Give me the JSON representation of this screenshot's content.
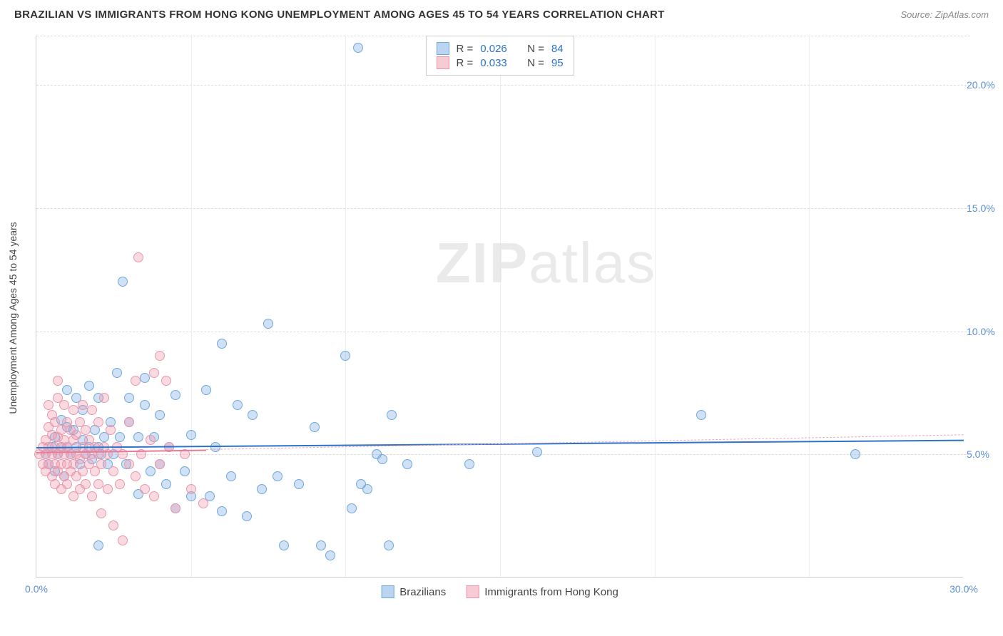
{
  "title": "BRAZILIAN VS IMMIGRANTS FROM HONG KONG UNEMPLOYMENT AMONG AGES 45 TO 54 YEARS CORRELATION CHART",
  "source": "Source: ZipAtlas.com",
  "watermark_a": "ZIP",
  "watermark_b": "atlas",
  "y_axis_label": "Unemployment Among Ages 45 to 54 years",
  "chart": {
    "type": "scatter",
    "background_color": "#ffffff",
    "grid_color": "#dddddd",
    "xlim": [
      0,
      30
    ],
    "ylim": [
      0,
      22
    ],
    "x_ticks": [
      0,
      5,
      10,
      15,
      20,
      25,
      30
    ],
    "x_tick_labels": [
      "0.0%",
      "",
      "",
      "",
      "",
      "",
      "30.0%"
    ],
    "y_ticks": [
      5,
      10,
      15,
      20
    ],
    "y_tick_labels": [
      "5.0%",
      "10.0%",
      "15.0%",
      "20.0%"
    ],
    "marker_size": 14,
    "marker_opacity": 0.35,
    "series": [
      {
        "name": "Brazilians",
        "color": "#6fa8dc",
        "fill": "rgba(120,170,230,0.35)",
        "R": "0.026",
        "N": "84",
        "trend": {
          "y_start": 5.3,
          "y_end": 5.6,
          "color": "#2d73c9",
          "width": 2.5
        },
        "points": [
          [
            0.3,
            5.0
          ],
          [
            0.4,
            4.6
          ],
          [
            0.5,
            5.3
          ],
          [
            0.6,
            4.3
          ],
          [
            0.6,
            5.7
          ],
          [
            0.7,
            5.0
          ],
          [
            0.8,
            5.3
          ],
          [
            0.8,
            6.4
          ],
          [
            0.9,
            4.1
          ],
          [
            1.0,
            5.3
          ],
          [
            1.0,
            6.1
          ],
          [
            1.0,
            7.6
          ],
          [
            1.1,
            5.0
          ],
          [
            1.2,
            6.0
          ],
          [
            1.3,
            5.3
          ],
          [
            1.3,
            7.3
          ],
          [
            1.4,
            4.6
          ],
          [
            1.5,
            5.6
          ],
          [
            1.5,
            6.8
          ],
          [
            1.6,
            5.0
          ],
          [
            1.7,
            5.3
          ],
          [
            1.7,
            7.8
          ],
          [
            1.8,
            4.8
          ],
          [
            1.9,
            6.0
          ],
          [
            2.0,
            5.3
          ],
          [
            2.0,
            7.3
          ],
          [
            2.0,
            1.3
          ],
          [
            2.1,
            5.0
          ],
          [
            2.2,
            5.7
          ],
          [
            2.3,
            4.6
          ],
          [
            2.4,
            6.3
          ],
          [
            2.5,
            5.0
          ],
          [
            2.6,
            8.3
          ],
          [
            2.7,
            5.7
          ],
          [
            2.8,
            12.0
          ],
          [
            2.9,
            4.6
          ],
          [
            3.0,
            6.3
          ],
          [
            3.0,
            7.3
          ],
          [
            3.3,
            3.4
          ],
          [
            3.3,
            5.7
          ],
          [
            3.5,
            7.0
          ],
          [
            3.5,
            8.1
          ],
          [
            3.7,
            4.3
          ],
          [
            3.8,
            5.7
          ],
          [
            4.0,
            4.6
          ],
          [
            4.0,
            6.6
          ],
          [
            4.2,
            3.8
          ],
          [
            4.3,
            5.3
          ],
          [
            4.5,
            7.4
          ],
          [
            4.5,
            2.8
          ],
          [
            4.8,
            4.3
          ],
          [
            5.0,
            3.3
          ],
          [
            5.0,
            5.8
          ],
          [
            5.5,
            7.6
          ],
          [
            5.6,
            3.3
          ],
          [
            5.8,
            5.3
          ],
          [
            6.0,
            9.5
          ],
          [
            6.0,
            2.7
          ],
          [
            6.3,
            4.1
          ],
          [
            6.5,
            7.0
          ],
          [
            6.8,
            2.5
          ],
          [
            7.0,
            6.6
          ],
          [
            7.3,
            3.6
          ],
          [
            7.5,
            10.3
          ],
          [
            7.8,
            4.1
          ],
          [
            8.0,
            1.3
          ],
          [
            8.5,
            3.8
          ],
          [
            9.0,
            6.1
          ],
          [
            9.2,
            1.3
          ],
          [
            9.5,
            0.9
          ],
          [
            10.0,
            9.0
          ],
          [
            10.2,
            2.8
          ],
          [
            10.4,
            21.5
          ],
          [
            10.5,
            3.8
          ],
          [
            10.7,
            3.6
          ],
          [
            11.0,
            5.0
          ],
          [
            11.2,
            4.8
          ],
          [
            11.4,
            1.3
          ],
          [
            11.5,
            6.6
          ],
          [
            12.0,
            4.6
          ],
          [
            14.0,
            4.6
          ],
          [
            16.2,
            5.1
          ],
          [
            21.5,
            6.6
          ],
          [
            26.5,
            5.0
          ]
        ]
      },
      {
        "name": "Immigrants from Hong Kong",
        "color": "#e898ac",
        "fill": "rgba(240,150,170,0.35)",
        "R": "0.033",
        "N": "95",
        "trend_solid": {
          "x_end": 5.5,
          "y_start": 5.1,
          "y_end": 5.2,
          "color": "#e87a9a",
          "width": 2
        },
        "trend_dash": {
          "x_start": 5.5,
          "y_start": 5.2,
          "y_end": 5.8,
          "color": "#f0a8b8",
          "width": 1.5
        },
        "points": [
          [
            0.1,
            5.0
          ],
          [
            0.2,
            4.6
          ],
          [
            0.2,
            5.3
          ],
          [
            0.3,
            4.3
          ],
          [
            0.3,
            5.0
          ],
          [
            0.3,
            5.6
          ],
          [
            0.4,
            4.6
          ],
          [
            0.4,
            5.3
          ],
          [
            0.4,
            6.1
          ],
          [
            0.4,
            7.0
          ],
          [
            0.5,
            4.1
          ],
          [
            0.5,
            5.0
          ],
          [
            0.5,
            5.8
          ],
          [
            0.5,
            6.6
          ],
          [
            0.6,
            3.8
          ],
          [
            0.6,
            4.6
          ],
          [
            0.6,
            5.3
          ],
          [
            0.6,
            6.3
          ],
          [
            0.7,
            4.3
          ],
          [
            0.7,
            5.0
          ],
          [
            0.7,
            5.7
          ],
          [
            0.7,
            7.3
          ],
          [
            0.7,
            8.0
          ],
          [
            0.8,
            3.6
          ],
          [
            0.8,
            4.6
          ],
          [
            0.8,
            5.3
          ],
          [
            0.8,
            6.0
          ],
          [
            0.9,
            4.1
          ],
          [
            0.9,
            5.0
          ],
          [
            0.9,
            5.6
          ],
          [
            0.9,
            7.0
          ],
          [
            1.0,
            3.8
          ],
          [
            1.0,
            4.6
          ],
          [
            1.0,
            5.3
          ],
          [
            1.0,
            6.3
          ],
          [
            1.1,
            4.3
          ],
          [
            1.1,
            5.0
          ],
          [
            1.1,
            6.0
          ],
          [
            1.2,
            3.3
          ],
          [
            1.2,
            4.6
          ],
          [
            1.2,
            5.6
          ],
          [
            1.2,
            6.8
          ],
          [
            1.3,
            4.1
          ],
          [
            1.3,
            5.0
          ],
          [
            1.3,
            5.8
          ],
          [
            1.4,
            3.6
          ],
          [
            1.4,
            4.8
          ],
          [
            1.4,
            6.3
          ],
          [
            1.5,
            4.3
          ],
          [
            1.5,
            5.3
          ],
          [
            1.5,
            7.0
          ],
          [
            1.6,
            3.8
          ],
          [
            1.6,
            5.0
          ],
          [
            1.6,
            6.0
          ],
          [
            1.7,
            4.6
          ],
          [
            1.7,
            5.6
          ],
          [
            1.8,
            3.3
          ],
          [
            1.8,
            5.0
          ],
          [
            1.8,
            6.8
          ],
          [
            1.9,
            4.3
          ],
          [
            1.9,
            5.3
          ],
          [
            2.0,
            3.8
          ],
          [
            2.0,
            5.0
          ],
          [
            2.0,
            6.3
          ],
          [
            2.1,
            4.6
          ],
          [
            2.1,
            2.6
          ],
          [
            2.2,
            5.3
          ],
          [
            2.2,
            7.3
          ],
          [
            2.3,
            3.6
          ],
          [
            2.3,
            5.0
          ],
          [
            2.4,
            6.0
          ],
          [
            2.5,
            4.3
          ],
          [
            2.5,
            2.1
          ],
          [
            2.6,
            5.3
          ],
          [
            2.7,
            3.8
          ],
          [
            2.8,
            5.0
          ],
          [
            2.8,
            1.5
          ],
          [
            3.0,
            4.6
          ],
          [
            3.0,
            6.3
          ],
          [
            3.2,
            4.1
          ],
          [
            3.2,
            8.0
          ],
          [
            3.3,
            13.0
          ],
          [
            3.4,
            5.0
          ],
          [
            3.5,
            3.6
          ],
          [
            3.7,
            5.6
          ],
          [
            3.8,
            3.3
          ],
          [
            3.8,
            8.3
          ],
          [
            4.0,
            4.6
          ],
          [
            4.0,
            9.0
          ],
          [
            4.2,
            8.0
          ],
          [
            4.3,
            5.3
          ],
          [
            4.5,
            2.8
          ],
          [
            4.8,
            5.0
          ],
          [
            5.0,
            3.6
          ],
          [
            5.4,
            3.0
          ]
        ]
      }
    ]
  },
  "stats_labels": {
    "R_prefix": "R =",
    "N_prefix": "N ="
  },
  "legend": {
    "label1": "Brazilians",
    "label2": "Immigrants from Hong Kong"
  }
}
